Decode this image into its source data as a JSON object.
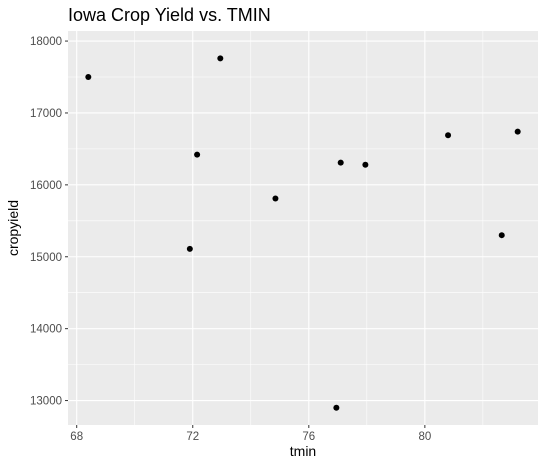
{
  "chart_data": {
    "type": "scatter",
    "title": "Iowa Crop Yield vs. TMIN",
    "xlabel": "tmin",
    "ylabel": "cropyield",
    "xlim": [
      67.7,
      83.9
    ],
    "ylim": [
      12660,
      18140
    ],
    "xticks": [
      68,
      72,
      76,
      80
    ],
    "xtick_labels": [
      "68",
      "72",
      "76",
      "80"
    ],
    "yticks": [
      13000,
      14000,
      15000,
      16000,
      17000,
      18000
    ],
    "ytick_labels": [
      "13000",
      "14000",
      "15000",
      "16000",
      "17000",
      "18000"
    ],
    "grid": true,
    "colors": {
      "panel": "#ebebeb",
      "grid_major": "#ffffff",
      "point": "#000000",
      "tick": "#4d4d4d"
    },
    "points": [
      {
        "x": 68.4,
        "y": 17500
      },
      {
        "x": 71.9,
        "y": 15110
      },
      {
        "x": 72.15,
        "y": 16420
      },
      {
        "x": 72.95,
        "y": 17760
      },
      {
        "x": 74.85,
        "y": 15810
      },
      {
        "x": 76.95,
        "y": 12900
      },
      {
        "x": 77.1,
        "y": 16310
      },
      {
        "x": 77.95,
        "y": 16280
      },
      {
        "x": 80.8,
        "y": 16690
      },
      {
        "x": 82.65,
        "y": 15300
      },
      {
        "x": 83.2,
        "y": 16740
      }
    ]
  }
}
